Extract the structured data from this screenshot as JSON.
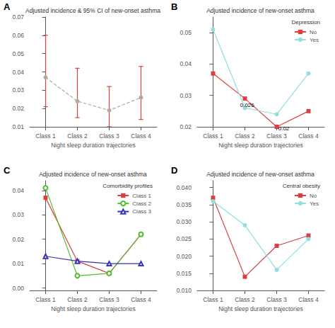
{
  "chart_data": [
    {
      "type": "line",
      "panel_label": "A",
      "title": "Adjusted incidence & 95% CI of new-onset asthma",
      "x_label": "Night sleep duration trajectories",
      "categories": [
        "Class 1",
        "Class 2",
        "Class 3",
        "Class 4"
      ],
      "ylim": [
        0.01,
        0.07
      ],
      "yticks": [
        0.01,
        0.02,
        0.03,
        0.04,
        0.05,
        0.06,
        0.07
      ],
      "grid": false,
      "series": [
        {
          "type": "line",
          "color": "#aaaaaa",
          "line_style": "dashed",
          "marker": "circle",
          "values": [
            0.037,
            0.024,
            0.019,
            0.026
          ]
        },
        {
          "type": "errorbar",
          "color": "#d94040",
          "low": [
            0.021,
            0.015,
            0.01,
            0.014
          ],
          "high": [
            0.06,
            0.042,
            0.032,
            0.043
          ]
        }
      ]
    },
    {
      "type": "line",
      "panel_label": "B",
      "title": "Adjusted incidence of new-onset asthma",
      "x_label": "Night sleep duration trajectories",
      "categories": [
        "Class 1",
        "Class 2",
        "Class 3",
        "Class 4"
      ],
      "ylim": [
        0.02,
        0.055
      ],
      "yticks": [
        0.02,
        0.03,
        0.04,
        0.05
      ],
      "grid": false,
      "legend": "upper right",
      "legend_title": "Depression",
      "series": [
        {
          "name": "No",
          "color": "#d94040",
          "marker": "square",
          "line_style": "solid",
          "values": [
            0.037,
            0.029,
            0.02,
            0.025
          ]
        },
        {
          "name": "Yes",
          "color": "#90dede",
          "marker": "circle",
          "line_style": "solid",
          "values": [
            0.051,
            0.026,
            0.024,
            0.037
          ]
        }
      ],
      "annotations": [
        {
          "text": "0.026",
          "x": 0.85,
          "y": 0.026
        },
        {
          "text": "0.02",
          "x": 2.05,
          "y": 0.0185
        }
      ]
    },
    {
      "type": "line",
      "panel_label": "C",
      "title": "Adjusted incidence of new-onset asthma",
      "x_label": "Night sleep duration trajectories",
      "categories": [
        "Class 1",
        "Class 2",
        "Class 3",
        "Class 4"
      ],
      "ylim": [
        -0.001,
        0.044
      ],
      "yticks": [
        {
          "value": 0.0,
          "label": "0.00"
        },
        0.01,
        0.02,
        0.03,
        0.04
      ],
      "grid": false,
      "legend": "upper right",
      "legend_title": "Comorbidity profiles",
      "series": [
        {
          "name": "Class 1",
          "color": "#d94040",
          "marker": "square",
          "line_style": "solid",
          "values": [
            0.037,
            0.011,
            0.006,
            0.022
          ]
        },
        {
          "name": "Class 2",
          "color": "#50bb30",
          "marker": "open_circle",
          "line_style": "solid",
          "values": [
            0.041,
            0.005,
            0.006,
            0.022
          ]
        },
        {
          "name": "Class 3",
          "color": "#3333bb",
          "marker": "open_triangle",
          "line_style": "solid",
          "values": [
            0.013,
            0.011,
            0.01,
            0.01
          ]
        }
      ]
    },
    {
      "type": "line",
      "panel_label": "D",
      "title": "Adjusted incidence of new-onset asthma",
      "x_label": "Night sleep duration trajectories",
      "categories": [
        "Class 1",
        "Class 2",
        "Class 3",
        "Class 4"
      ],
      "ylim": [
        0.01,
        0.042
      ],
      "yticks": [
        {
          "value": 0.01,
          "label": "0.010"
        },
        {
          "value": 0.015,
          "label": "0.015"
        },
        {
          "value": 0.02,
          "label": "0.020"
        },
        {
          "value": 0.025,
          "label": "0.025"
        },
        {
          "value": 0.03,
          "label": "0.030"
        },
        {
          "value": 0.035,
          "label": "0.035"
        },
        {
          "value": 0.04,
          "label": "0.040"
        }
      ],
      "grid": false,
      "legend": "upper right",
      "legend_title": "Central obesity",
      "series": [
        {
          "name": "No",
          "color": "#d94040",
          "marker": "square",
          "line_style": "solid",
          "values": [
            0.037,
            0.014,
            0.023,
            0.026
          ]
        },
        {
          "name": "Yes",
          "color": "#90dede",
          "marker": "circle",
          "line_style": "solid",
          "values": [
            0.036,
            0.029,
            0.016,
            0.025
          ]
        }
      ]
    }
  ]
}
